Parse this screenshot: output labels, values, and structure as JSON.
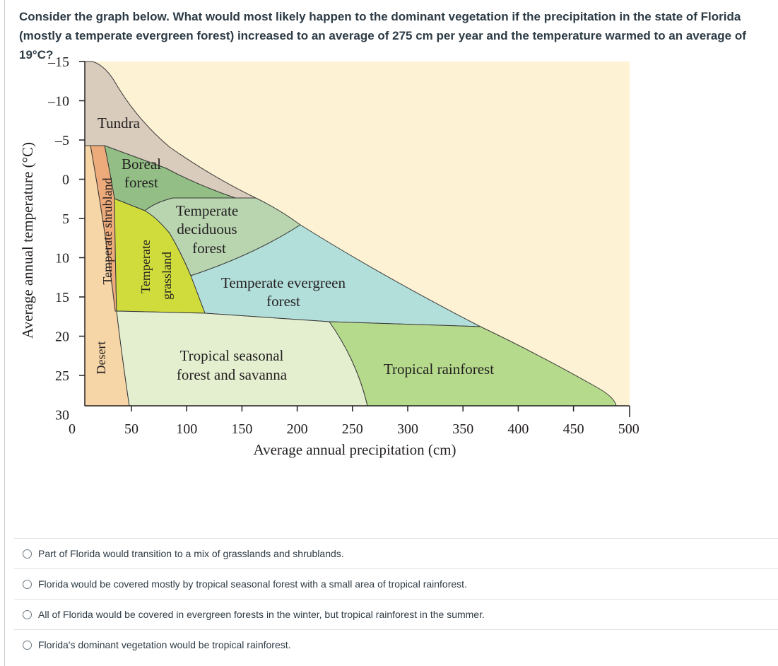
{
  "question": {
    "text": "Consider the graph below.  What would most likely happen to the dominant vegetation if the precipitation in the state of Florida (mostly a temperate evergreen forest) increased to an average of 275 cm per year and the temperature warmed to an average of 19°C?"
  },
  "diagram": {
    "y_axis_label": "Average annual temperature (°C)",
    "x_axis_label": "Average annual precipitation (cm)",
    "y_ticks": [
      "–15",
      "–10",
      "–5",
      "0",
      "5",
      "10",
      "15",
      "20",
      "25",
      "30"
    ],
    "x_ticks": [
      "0",
      "50",
      "100",
      "150",
      "200",
      "250",
      "300",
      "350",
      "400",
      "450",
      "500"
    ],
    "biomes": {
      "tundra": "Tundra",
      "boreal_1": "Boreal",
      "boreal_2": "forest",
      "temp_decid_1": "Temperate",
      "temp_decid_2": "deciduous",
      "temp_decid_3": "forest",
      "temp_evergreen_1": "Temperate evergreen",
      "temp_evergreen_2": "forest",
      "trop_seasonal_1": "Tropical seasonal",
      "trop_seasonal_2": "forest and savanna",
      "trop_rainforest": "Tropical rainforest",
      "shrubland": "Temperate shrubland",
      "grassland_1": "Temperate",
      "grassland_2": "grassland",
      "desert": "Desert"
    },
    "colors": {
      "background": "#fdf2d4",
      "tundra": "#d9ccbd",
      "boreal": "#93bf86",
      "temperate_deciduous": "#b9d5b0",
      "temperate_evergreen": "#b3dfdb",
      "tropical_seasonal": "#e4efd0",
      "tropical_rainforest": "#b5da8c",
      "temperate_shrubland": "#edaa7a",
      "temperate_grassland": "#cfdc3c",
      "desert": "#f6d6a6"
    }
  },
  "answers": [
    "Part of Florida would transition to a mix of grasslands and shrublands.",
    "Florida would be covered mostly by tropical seasonal forest with a small area of tropical rainforest.",
    "All of Florida would be covered in evergreen forests in the winter, but tropical rainforest in the summer.",
    "Florida's dominant vegetation would be tropical rainforest."
  ]
}
